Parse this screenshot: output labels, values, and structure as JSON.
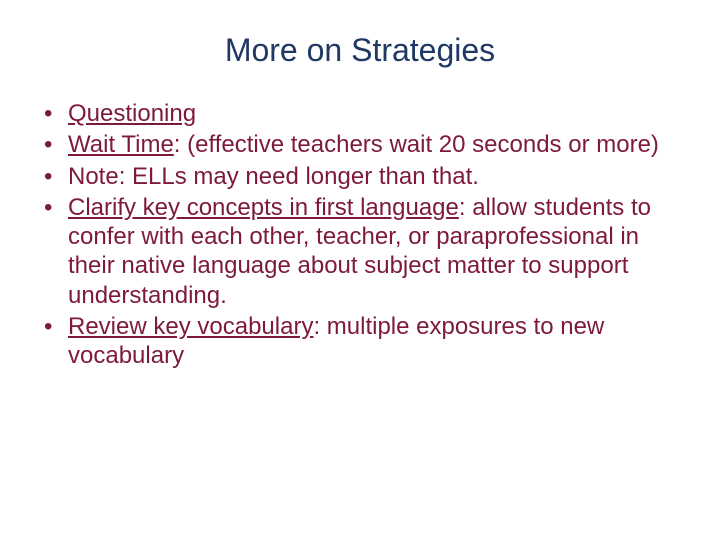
{
  "title": {
    "text": "More on Strategies",
    "color": "#1f3864",
    "fontsize": 32
  },
  "body": {
    "color": "#7d1a3a",
    "bullet_color": "#7d1a3a",
    "fontsize": 24,
    "items": [
      {
        "lead": "Questioning",
        "rest": ""
      },
      {
        "lead": "Wait Time",
        "rest": ": (effective teachers wait 20 seconds or more)"
      },
      {
        "lead": "",
        "rest": "Note: ELLs may need longer than that."
      },
      {
        "lead": "Clarify key concepts in first language",
        "rest": ": allow students to confer with each other, teacher, or paraprofessional in their native language about subject matter to support understanding."
      },
      {
        "lead": "Review key vocabulary",
        "rest": ": multiple exposures to new vocabulary"
      }
    ]
  }
}
